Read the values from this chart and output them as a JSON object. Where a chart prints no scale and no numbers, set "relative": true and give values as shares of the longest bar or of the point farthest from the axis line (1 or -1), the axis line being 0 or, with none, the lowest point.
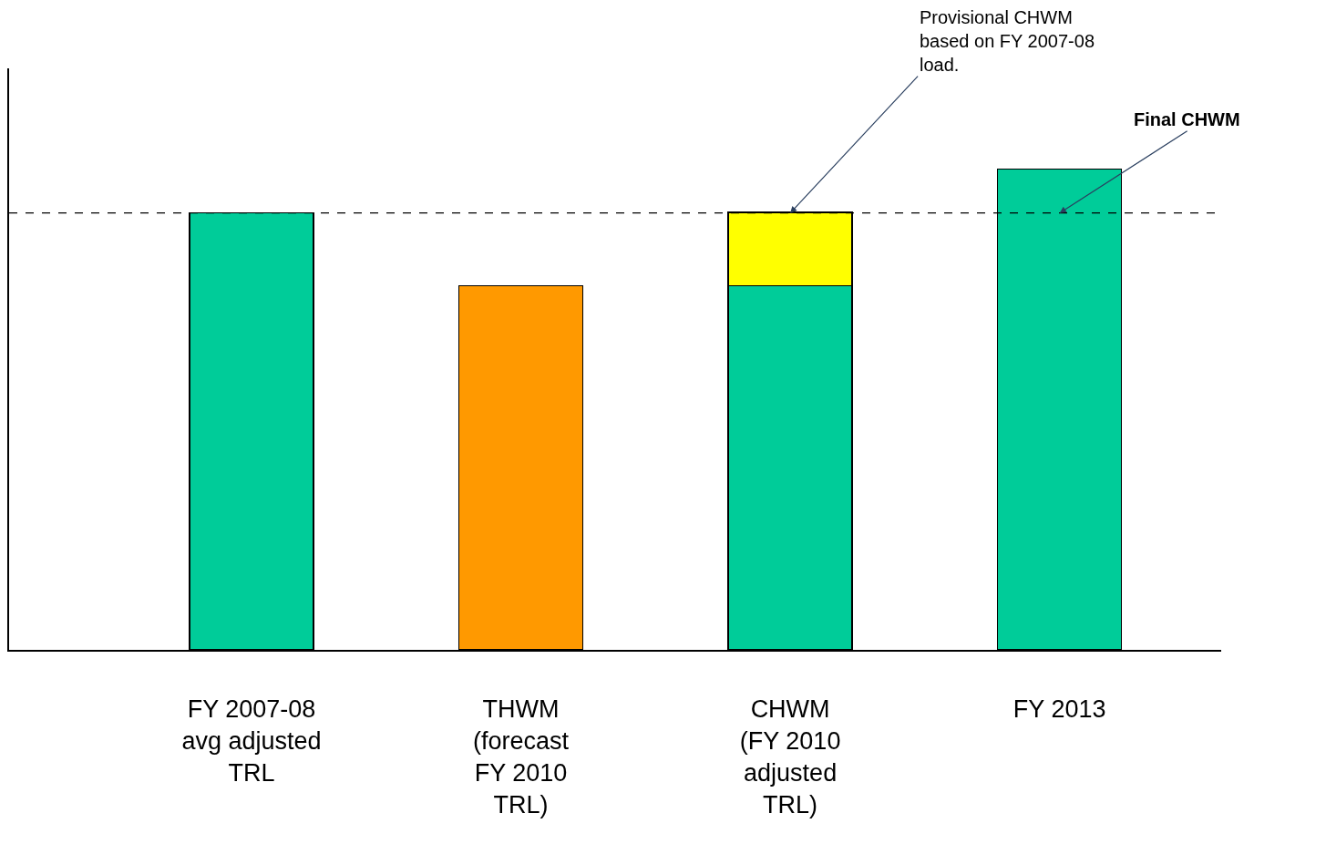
{
  "chart_data": {
    "type": "bar",
    "relative": true,
    "stacked": true,
    "categories": [
      "FY 2007-08\navg adjusted\nTRL",
      "THWM\n(forecast\nFY 2010\nTRL)",
      "CHWM\n(FY 2010\nadjusted\nTRL)",
      "FY 2013"
    ],
    "series": [
      {
        "colors": [
          "#00cc99",
          "#ff9900",
          "#00cc99",
          "#00cc99"
        ],
        "values": [
          0.909,
          0.758,
          0.758,
          1
        ]
      },
      {
        "color": "#ffff00",
        "values": [
          null,
          null,
          0.152,
          null
        ]
      }
    ],
    "ref_lines": [
      {
        "axis": "y",
        "value": 0.909,
        "color": "#000000",
        "line_style": "dashed"
      }
    ],
    "annotations": [
      {
        "text": "Provisional CHWM\nbased on FY 2007-08\nload.",
        "x": "CHWM\n(FY 2010\nadjusted\nTRL)",
        "y": 0.909
      },
      {
        "text": "Final CHWM",
        "x": "FY 2013",
        "y": 0.909
      }
    ]
  }
}
